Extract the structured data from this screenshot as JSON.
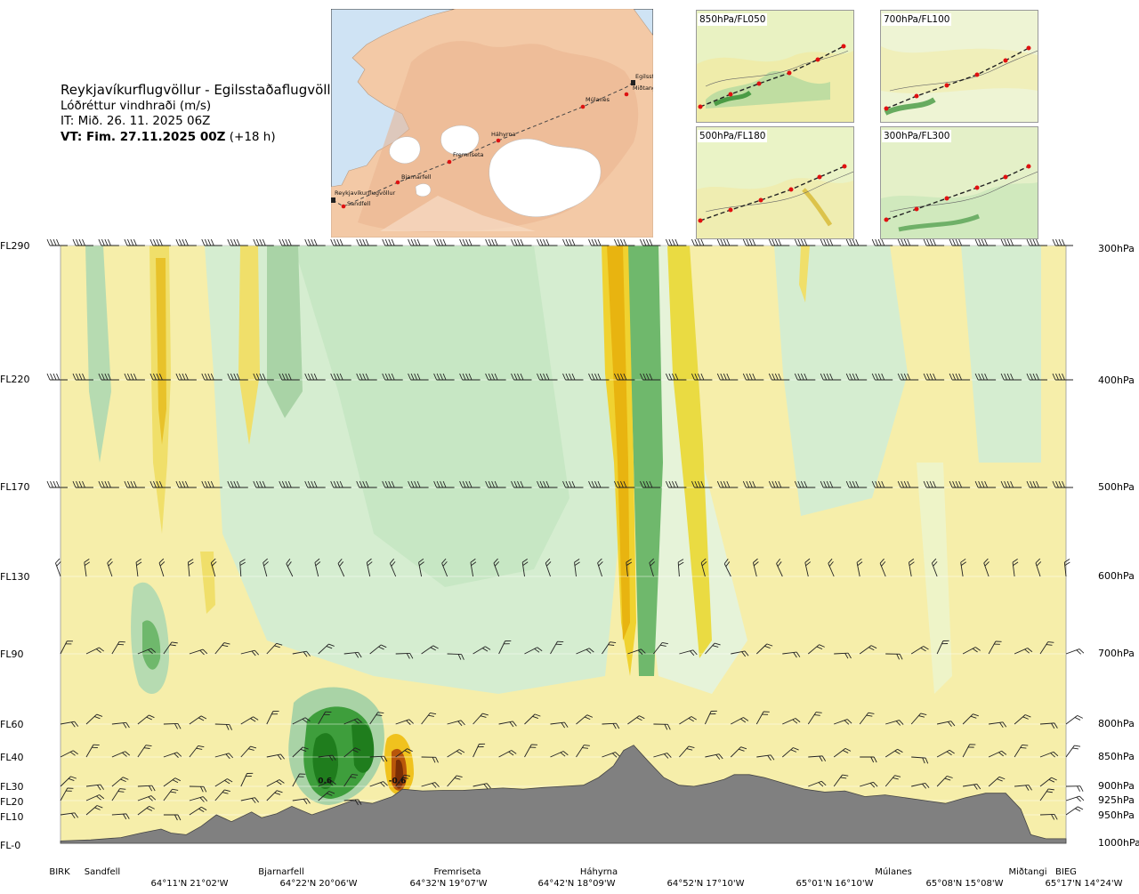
{
  "title": {
    "route": "Reykjavíkurflugvöllur - Egilsstaðaflugvöllur",
    "variable": "Lóðréttur vindhraði (m/s)",
    "issue_time": "IT: Mið. 26. 11. 2025 06Z",
    "valid_time_bold": "VT: Fim. 27.11.2025 00Z",
    "valid_time_offset": "(+18 h)"
  },
  "map": {
    "places": [
      {
        "name": "Reykjavíkurflugvöllur"
      },
      {
        "name": "Sandfell"
      },
      {
        "name": "Bjarnarfell"
      },
      {
        "name": "Fremriseta"
      },
      {
        "name": "Háhyrna"
      },
      {
        "name": "Múlanes"
      },
      {
        "name": "Miðtangi"
      },
      {
        "name": "Egilsstaðir"
      }
    ]
  },
  "panels": [
    {
      "label": "850hPa/FL050"
    },
    {
      "label": "700hPa/FL100"
    },
    {
      "label": "500hPa/FL180"
    },
    {
      "label": "300hPa/FL300"
    }
  ],
  "chart_data": {
    "type": "heatmap",
    "variable": "Lóðréttur vindhraði (m/s)",
    "y_levels": [
      {
        "fl": "FL290",
        "hpa": "300hPa",
        "p": 300
      },
      {
        "fl": "FL220",
        "hpa": "400hPa",
        "p": 400
      },
      {
        "fl": "FL170",
        "hpa": "500hPa",
        "p": 500
      },
      {
        "fl": "FL130",
        "hpa": "600hPa",
        "p": 600
      },
      {
        "fl": "FL90",
        "hpa": "700hPa",
        "p": 700
      },
      {
        "fl": "FL60",
        "hpa": "800hPa",
        "p": 800
      },
      {
        "fl": "FL40",
        "hpa": "850hPa",
        "p": 850
      },
      {
        "fl": "FL30",
        "hpa": "900hPa",
        "p": 900
      },
      {
        "fl": "FL20",
        "hpa": "925hPa",
        "p": 925
      },
      {
        "fl": "FL10",
        "hpa": "950hPa",
        "p": 950
      },
      {
        "fl": "FL-0",
        "hpa": "1000hPa",
        "p": 1000
      }
    ],
    "x_place_labels": [
      "BIRK",
      "Sandfell",
      "Bjarnarfell",
      "Fremriseta",
      "Háhyrna",
      "Múlanes",
      "Miðtangi",
      "BIEG"
    ],
    "x_place_positions": [
      0.0,
      0.045,
      0.22,
      0.395,
      0.545,
      0.825,
      0.955,
      1.0
    ],
    "x_coord_labels": [
      "64°11'N 21°02'W",
      "64°22'N 20°06'W",
      "64°32'N 19°07'W",
      "64°42'N 18°09'W",
      "64°52'N 17°10'W",
      "65°01'N 16°10'W",
      "65°08'N 15°08'W",
      "65°17'N 14°24'W"
    ],
    "x_coord_positions": [
      0.125,
      0.255,
      0.385,
      0.515,
      0.645,
      0.775,
      0.905,
      1.0
    ],
    "annotations": [
      {
        "text": "0.6",
        "x": 0.263,
        "p": 895
      },
      {
        "text": "-0.6",
        "x": 0.335,
        "p": 895
      }
    ],
    "terrain_pressure": [
      [
        0.0,
        996
      ],
      [
        0.03,
        994
      ],
      [
        0.06,
        990
      ],
      [
        0.08,
        982
      ],
      [
        0.1,
        975
      ],
      [
        0.11,
        982
      ],
      [
        0.125,
        985
      ],
      [
        0.14,
        970
      ],
      [
        0.155,
        950
      ],
      [
        0.17,
        962
      ],
      [
        0.19,
        945
      ],
      [
        0.2,
        955
      ],
      [
        0.215,
        948
      ],
      [
        0.23,
        935
      ],
      [
        0.25,
        950
      ],
      [
        0.27,
        938
      ],
      [
        0.29,
        925
      ],
      [
        0.31,
        930
      ],
      [
        0.33,
        918
      ],
      [
        0.34,
        905
      ],
      [
        0.36,
        908
      ],
      [
        0.38,
        907
      ],
      [
        0.4,
        907
      ],
      [
        0.42,
        905
      ],
      [
        0.44,
        903
      ],
      [
        0.46,
        905
      ],
      [
        0.48,
        902
      ],
      [
        0.5,
        900
      ],
      [
        0.52,
        898
      ],
      [
        0.535,
        885
      ],
      [
        0.55,
        865
      ],
      [
        0.56,
        840
      ],
      [
        0.57,
        832
      ],
      [
        0.585,
        858
      ],
      [
        0.6,
        885
      ],
      [
        0.615,
        898
      ],
      [
        0.63,
        900
      ],
      [
        0.645,
        895
      ],
      [
        0.66,
        888
      ],
      [
        0.67,
        880
      ],
      [
        0.685,
        880
      ],
      [
        0.7,
        885
      ],
      [
        0.72,
        895
      ],
      [
        0.74,
        905
      ],
      [
        0.76,
        910
      ],
      [
        0.78,
        908
      ],
      [
        0.8,
        918
      ],
      [
        0.82,
        915
      ],
      [
        0.84,
        920
      ],
      [
        0.86,
        925
      ],
      [
        0.88,
        930
      ],
      [
        0.9,
        920
      ],
      [
        0.92,
        912
      ],
      [
        0.94,
        912
      ],
      [
        0.955,
        940
      ],
      [
        0.965,
        985
      ],
      [
        0.98,
        992
      ],
      [
        1.0,
        992
      ]
    ],
    "wind_barb_levels": [
      300,
      400,
      500,
      600,
      700,
      800,
      850,
      900,
      925,
      950
    ]
  }
}
